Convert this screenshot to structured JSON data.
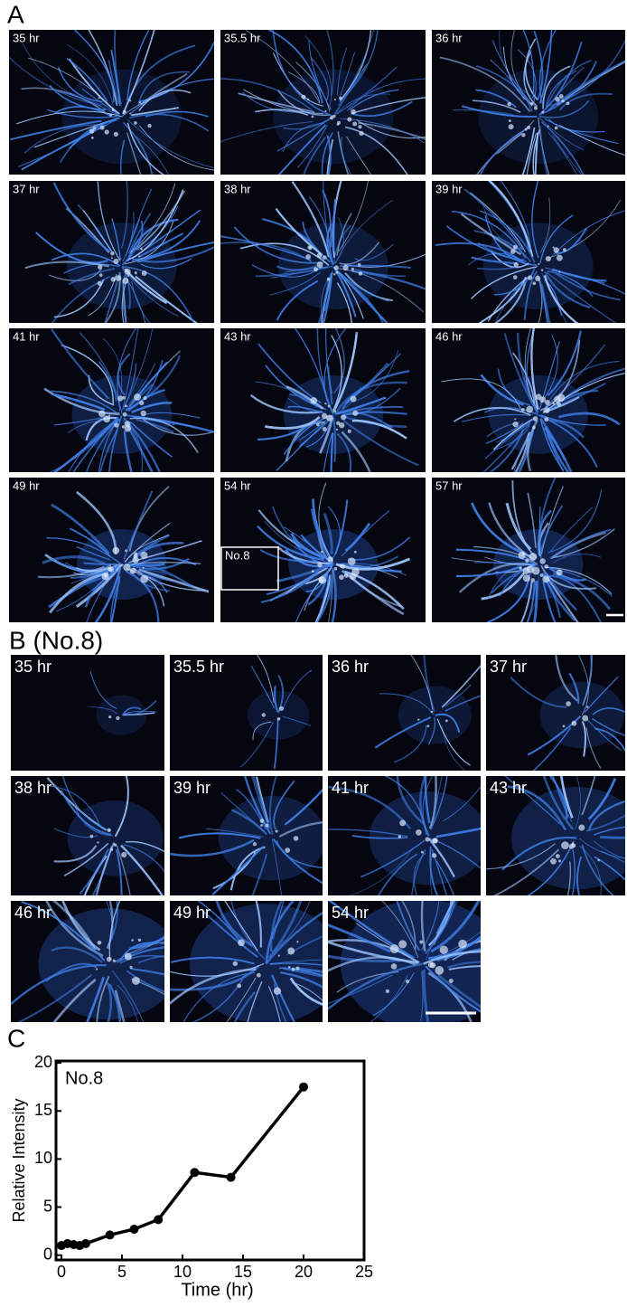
{
  "panel_a": {
    "label": "A",
    "frames": [
      "35 hr",
      "35.5 hr",
      "36 hr",
      "37 hr",
      "38 hr",
      "39 hr",
      "41 hr",
      "43 hr",
      "46 hr",
      "49 hr",
      "54 hr",
      "57 hr"
    ],
    "inset_label": "No.8"
  },
  "panel_b": {
    "label": "B (No.8)",
    "frames": [
      "35 hr",
      "35.5 hr",
      "36 hr",
      "37 hr",
      "38 hr",
      "39 hr",
      "41 hr",
      "43 hr",
      "46 hr",
      "49 hr",
      "54 hr"
    ]
  },
  "chart_data": {
    "type": "line",
    "label": "C",
    "annotation": "No.8",
    "x_label": "Time (hr)",
    "y_label": "Relative Intensity",
    "x": [
      0,
      0.5,
      1,
      1.5,
      2,
      4,
      6,
      8,
      11,
      14,
      20
    ],
    "values": [
      1.0,
      1.2,
      1.1,
      1.0,
      1.2,
      2.1,
      2.7,
      3.7,
      8.6,
      8.1,
      17.5
    ],
    "color": "#000000",
    "xlim": [
      -0.45,
      25
    ],
    "ylim": [
      -0.5,
      20.2
    ],
    "xticks": [
      0,
      5,
      10,
      15,
      20,
      25
    ],
    "yticks": [
      0,
      5,
      10,
      15,
      20
    ]
  }
}
